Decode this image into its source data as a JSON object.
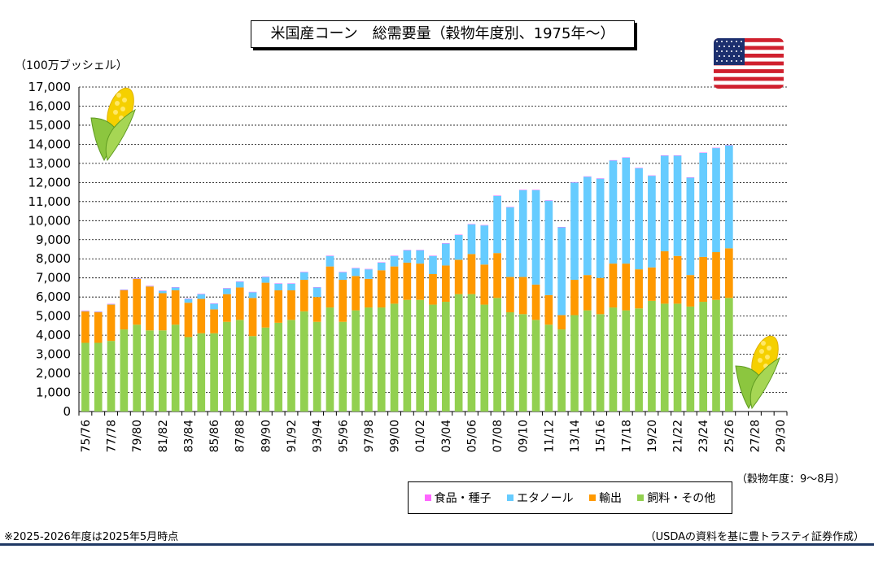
{
  "title": "米国産コーン　総需要量（穀物年度別、1975年～）",
  "unit_label": "（100万ブッシェル）",
  "xaxis_note": "（穀物年度：9～8月）",
  "footnote": "※2025-2026年度は2025年5月時点",
  "source": "（USDAの資料を基に豊トラスティ証券作成）",
  "colors": {
    "food_seed": "#ff66ff",
    "ethanol": "#66ccff",
    "export": "#ff9900",
    "feed": "#92d050",
    "title_border": "#000000",
    "bottom_rule": "#1f3864"
  },
  "decor": {
    "flag": "us-flag-icon",
    "corn": "corn-icon"
  },
  "chart_data": {
    "type": "bar",
    "stacked": true,
    "title": "米国産コーン　総需要量（穀物年度別、1975年～）",
    "ylabel": "（100万ブッシェル）",
    "xlabel": "（穀物年度：9～8月）",
    "ylim": [
      0,
      17000
    ],
    "ytick_step": 1000,
    "ytick_labels": [
      "0",
      "1,000",
      "2,000",
      "3,000",
      "4,000",
      "5,000",
      "6,000",
      "7,000",
      "8,000",
      "9,000",
      "10,000",
      "11,000",
      "12,000",
      "13,000",
      "14,000",
      "15,000",
      "16,000",
      "17,000"
    ],
    "grid": true,
    "legend_position": "bottom-right",
    "categories": [
      "75/76",
      "76/77",
      "77/78",
      "78/79",
      "79/80",
      "80/81",
      "81/82",
      "82/83",
      "83/84",
      "84/85",
      "85/86",
      "86/87",
      "87/88",
      "88/89",
      "89/90",
      "90/91",
      "91/92",
      "92/93",
      "93/94",
      "94/95",
      "95/96",
      "96/97",
      "97/98",
      "98/99",
      "99/00",
      "00/01",
      "01/02",
      "02/03",
      "03/04",
      "04/05",
      "05/06",
      "06/07",
      "07/08",
      "08/09",
      "09/10",
      "10/11",
      "11/12",
      "12/13",
      "13/14",
      "14/15",
      "15/16",
      "16/17",
      "17/18",
      "18/19",
      "19/20",
      "20/21",
      "21/22",
      "22/23",
      "23/24",
      "24/25",
      "25/26",
      "26/27",
      "27/28",
      "28/29",
      "29/30"
    ],
    "tick_labels": [
      "75/76",
      "77/78",
      "79/80",
      "81/82",
      "83/84",
      "85/86",
      "87/88",
      "89/90",
      "91/92",
      "93/94",
      "95/96",
      "97/98",
      "99/00",
      "01/02",
      "03/04",
      "05/06",
      "07/08",
      "09/10",
      "11/12",
      "13/14",
      "15/16",
      "17/18",
      "19/20",
      "21/22",
      "23/24",
      "25/26",
      "27/28",
      "29/30"
    ],
    "series": [
      {
        "name": "飼料・その他",
        "color": "#92d050",
        "values": [
          3600,
          3600,
          3700,
          4300,
          4550,
          4250,
          4250,
          4550,
          3900,
          4100,
          4100,
          4700,
          4800,
          3950,
          4400,
          4650,
          4800,
          5250,
          4700,
          5450,
          4700,
          5300,
          5450,
          5450,
          5650,
          5850,
          5850,
          5600,
          5750,
          6150,
          6150,
          5600,
          5950,
          5200,
          5100,
          4800,
          4550,
          4300,
          5050,
          5300,
          5100,
          5450,
          5300,
          5400,
          5800,
          5650,
          5650,
          5500,
          5750,
          5850,
          5950,
          null,
          null,
          null,
          null
        ]
      },
      {
        "name": "輸出",
        "color": "#ff9900",
        "values": [
          1650,
          1600,
          1900,
          2050,
          2400,
          2300,
          1950,
          1800,
          1800,
          1800,
          1250,
          1450,
          1700,
          2000,
          2350,
          1700,
          1550,
          1650,
          1300,
          2150,
          2200,
          1800,
          1500,
          1950,
          1950,
          1950,
          1900,
          1600,
          1900,
          1800,
          2100,
          2100,
          2350,
          1850,
          1950,
          1850,
          1550,
          750,
          1850,
          1850,
          1900,
          2300,
          2450,
          2050,
          1750,
          2750,
          2500,
          1650,
          2350,
          2500,
          2600,
          null,
          null,
          null,
          null
        ]
      },
      {
        "name": "エタノール",
        "color": "#66ccff",
        "values": [
          20,
          20,
          20,
          20,
          20,
          20,
          120,
          150,
          200,
          250,
          300,
          300,
          300,
          300,
          300,
          350,
          350,
          400,
          500,
          550,
          400,
          400,
          500,
          400,
          550,
          650,
          700,
          950,
          1150,
          1300,
          1550,
          2050,
          3000,
          3650,
          4550,
          4950,
          4950,
          4600,
          5100,
          5150,
          5200,
          5400,
          5550,
          5300,
          4800,
          5000,
          5250,
          5100,
          5450,
          5450,
          5400,
          null,
          null,
          null,
          null
        ]
      },
      {
        "name": "食品・種子",
        "color": "#ff66ff",
        "values": [
          20,
          20,
          20,
          20,
          20,
          20,
          20,
          20,
          20,
          20,
          20,
          20,
          20,
          20,
          20,
          20,
          20,
          20,
          20,
          20,
          20,
          20,
          20,
          20,
          20,
          20,
          20,
          20,
          20,
          20,
          20,
          20,
          20,
          20,
          20,
          20,
          20,
          20,
          20,
          20,
          20,
          20,
          20,
          20,
          20,
          20,
          20,
          20,
          20,
          20,
          20,
          null,
          null,
          null,
          null
        ]
      }
    ],
    "legend": [
      "食品・種子",
      "エタノール",
      "輸出",
      "飼料・その他"
    ]
  }
}
